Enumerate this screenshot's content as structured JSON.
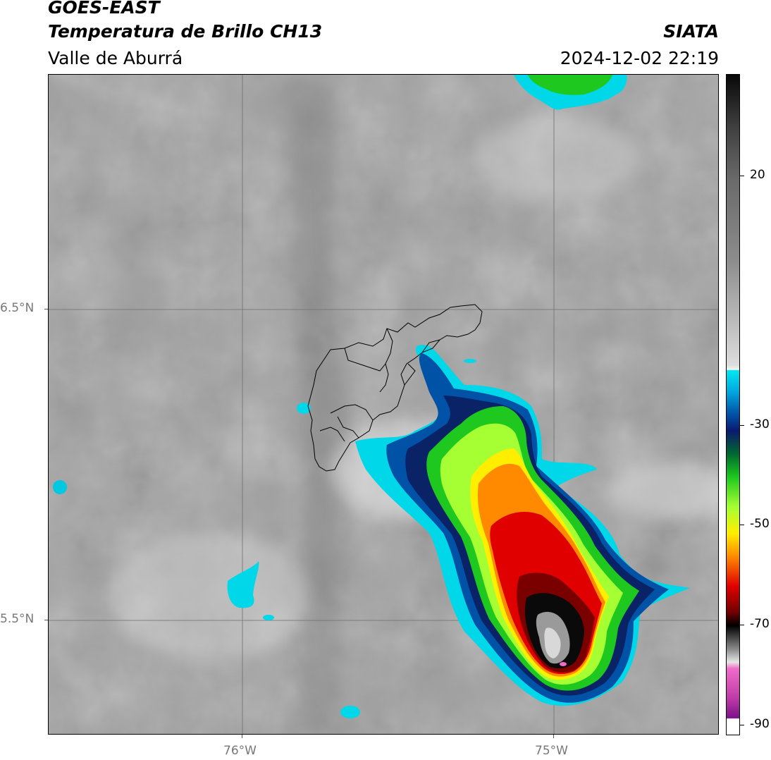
{
  "header": {
    "satellite": "GOES-EAST",
    "product": "Temperatura de Brillo CH13",
    "region": "Valle de Aburrá",
    "agency": "SIATA",
    "datetime": "2024-12-02 22:19"
  },
  "axes": {
    "lat_labels": [
      "6.5°N",
      "5.5°N"
    ],
    "lon_labels": [
      "76°W",
      "75°W"
    ]
  },
  "colorbar": {
    "tick_labels": [
      "20",
      "-30",
      "-50",
      "-70",
      "-90"
    ],
    "range": [
      -92,
      40
    ],
    "colors": {
      "warm_gray_top": "#0a0a0a",
      "mid_gray": "#8c8c8c",
      "light_gray": "#f0f0f0",
      "cyan": "#00d7e8",
      "blue": "#0052a6",
      "navy": "#0a2266",
      "green": "#1ec81e",
      "light_green": "#a6ff33",
      "yellow": "#ffee00",
      "orange": "#ff8a00",
      "red": "#e00000",
      "dark_red": "#500000",
      "black": "#000000",
      "pink": "#f06cc8",
      "purple": "#8a1890"
    }
  }
}
